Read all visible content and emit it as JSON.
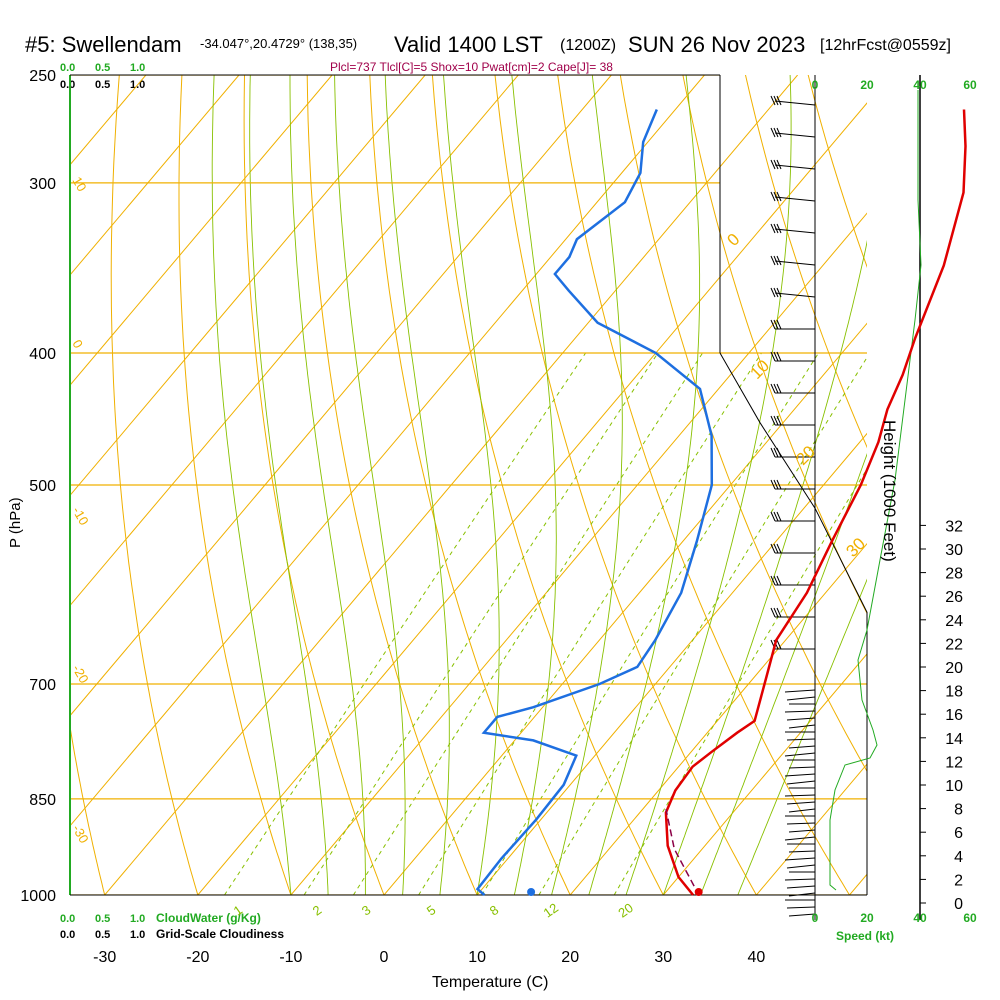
{
  "header": {
    "station": "#5: Swellendam",
    "coords": "-34.047°,20.4729° (138,35)",
    "valid": "Valid 1400 LST",
    "zulu": "(1200Z)",
    "date": "SUN 26 Nov 2023",
    "forecast": "[12hrFcst@0559z]",
    "params": "Plcl=737 Tlcl[C]=5 Shox=10 Pwat[cm]=2 Cape[J]= 38"
  },
  "colors": {
    "temperature": "#e00000",
    "dewpoint": "#1e6fe0",
    "parcel": "#8b0046",
    "isotherm": "#f0b000",
    "dry_adiabat": "#f0b000",
    "moist_adiabat": "#88c000",
    "mixing_ratio": "#88c000",
    "accent_green": "#22aa22",
    "params_text": "#a0004a"
  },
  "chart_data": {
    "type": "line",
    "title": "#5: Swellendam",
    "xlabel": "Temperature (C)",
    "ylabel": "P (hPa)",
    "y2label": "Height (1000 Feet)",
    "xlim": [
      -35,
      47
    ],
    "ylim": [
      1000,
      250
    ],
    "x_ticks": [
      "-30",
      "-20",
      "-10",
      "0",
      "10",
      "20",
      "30",
      "40"
    ],
    "pressure_ticks": [
      {
        "label": "250",
        "p": 250
      },
      {
        "label": "300",
        "p": 300
      },
      {
        "label": "400",
        "p": 400
      },
      {
        "label": "500",
        "p": 500
      },
      {
        "label": "P (hPa)",
        "p": null
      },
      {
        "label": "700",
        "p": 700
      },
      {
        "label": "850",
        "p": 850
      },
      {
        "label": "1000",
        "p": 1000
      }
    ],
    "height_ticks": [
      "0",
      "2",
      "4",
      "6",
      "8",
      "10",
      "12",
      "14",
      "16",
      "18",
      "20",
      "22",
      "24",
      "26",
      "28",
      "30",
      "32"
    ],
    "cloud_scale_top_green": [
      "0.0",
      "0.5",
      "1.0"
    ],
    "cloud_scale_top_black": [
      "0.0",
      "0.5",
      "1.0"
    ],
    "cloud_scale_bottom_green": [
      "0.0",
      "0.5",
      "1.0",
      "CloudWater (g/Kg)"
    ],
    "cloud_scale_bottom_black": [
      "0.0",
      "0.5",
      "1.0",
      "Grid-Scale Cloudiness"
    ],
    "speed_ticks_green": [
      "0",
      "20",
      "40",
      "60"
    ],
    "speed_ticks_top": [
      "0",
      "20",
      "40",
      "60"
    ],
    "speed_label": "Speed (kt)",
    "dry_adiabat_labels": [
      "0",
      "10",
      "20",
      "30"
    ],
    "isotherm_labels": [
      "10",
      "0",
      "-10",
      "-20",
      "-30"
    ],
    "mixing_ratio_labels": [
      "1",
      "2",
      "3",
      "5",
      "8",
      "12",
      "20"
    ],
    "surface_temperature": 33.8,
    "surface_dewpoint": 15.8,
    "series": [
      {
        "kind": "temperature",
        "points": [
          [
            33.2,
            1000
          ],
          [
            30,
            970
          ],
          [
            26,
            920
          ],
          [
            22.8,
            870
          ],
          [
            21.8,
            838
          ],
          [
            21.5,
            805
          ],
          [
            22.2,
            785
          ],
          [
            23.2,
            760
          ],
          [
            24,
            745
          ],
          [
            21.2,
            690
          ],
          [
            19,
            650
          ],
          [
            18,
            600
          ],
          [
            16,
            550
          ],
          [
            14,
            500
          ],
          [
            12,
            465
          ],
          [
            10,
            440
          ],
          [
            8.5,
            415
          ],
          [
            6.5,
            390
          ],
          [
            3,
            345
          ],
          [
            -1.5,
            305
          ],
          [
            -5.5,
            282
          ],
          [
            -9,
            265
          ]
        ]
      },
      {
        "kind": "dewpoint",
        "points": [
          [
            10.8,
            1000
          ],
          [
            9.5,
            990
          ],
          [
            9.3,
            940
          ],
          [
            9.5,
            880
          ],
          [
            9.3,
            830
          ],
          [
            8,
            790
          ],
          [
            2,
            770
          ],
          [
            -4,
            760
          ],
          [
            -4,
            740
          ],
          [
            -1,
            728
          ],
          [
            4,
            700
          ],
          [
            6.5,
            680
          ],
          [
            6,
            650
          ],
          [
            4.5,
            600
          ],
          [
            1.5,
            550
          ],
          [
            -2,
            500
          ],
          [
            -6.5,
            460
          ],
          [
            -12,
            425
          ],
          [
            -20,
            400
          ],
          [
            -29,
            380
          ],
          [
            -35,
            360
          ],
          [
            -38,
            350
          ],
          [
            -38,
            340
          ],
          [
            -38.8,
            330
          ],
          [
            -37,
            310
          ],
          [
            -38,
            295
          ],
          [
            -40.5,
            280
          ],
          [
            -42,
            265
          ]
        ]
      },
      {
        "kind": "parcel",
        "points": [
          [
            32.5,
            985
          ],
          [
            27,
            925
          ],
          [
            22.5,
            865
          ]
        ]
      }
    ],
    "height_profile_note": "",
    "wind_barbs": "present"
  }
}
